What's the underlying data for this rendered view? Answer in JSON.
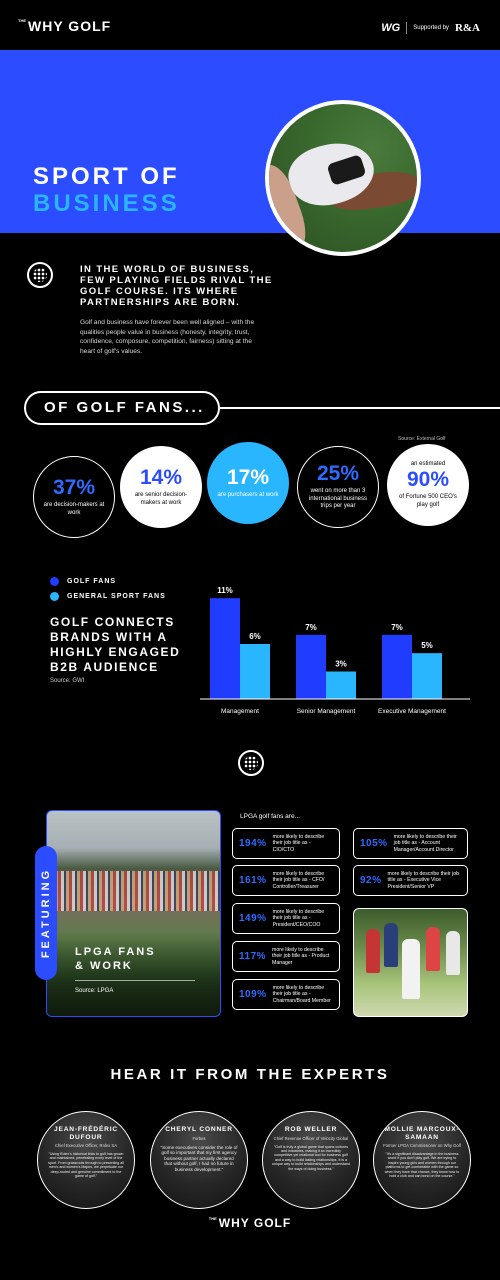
{
  "header": {
    "logo_the": "THE",
    "logo": "WHY GOLF",
    "brand_wg": "WG",
    "supported_by": "Supported by",
    "ra": "R&A"
  },
  "hero": {
    "title_line1": "SPORT OF",
    "title_line2": "BUSINESS"
  },
  "intro": {
    "bold": "IN THE WORLD OF BUSINESS, FEW PLAYING FIELDS RIVAL THE GOLF COURSE. ITS WHERE PARTNERSHIPS ARE BORN.",
    "body": "Golf and business have forever been well aligned – with the qualities people value in business (honesty, integrity, trust, confidence, composure, competition, fairness) sitting at the heart of golf's values."
  },
  "fans": {
    "pill": "OF GOLF FANS...",
    "source": "Source: External Golf",
    "stats": [
      {
        "value": "37%",
        "label": "are decision-makers at work"
      },
      {
        "value": "14%",
        "label": "are senior decision-makers at work"
      },
      {
        "value": "17%",
        "label": "are purchasers at work"
      },
      {
        "value": "25%",
        "label": "went on more than 3 international business trips per year"
      },
      {
        "pre": "an estimated",
        "value": "90%",
        "label": "of Fortune 500 CEO's play golf"
      }
    ]
  },
  "chart_section": {
    "legend_golf": "GOLF FANS",
    "legend_general": "GENERAL SPORT FANS",
    "title": "GOLF CONNECTS BRANDS WITH A HIGHLY ENGAGED B2B AUDIENCE",
    "source": "Source: GWI"
  },
  "chart_data": {
    "type": "bar",
    "categories": [
      "Management",
      "Senior Management",
      "Executive Management"
    ],
    "series": [
      {
        "name": "GOLF FANS",
        "values": [
          11,
          7,
          7
        ],
        "labels": [
          "11%",
          "7%",
          "7%"
        ],
        "color": "#1f3cff"
      },
      {
        "name": "GENERAL SPORT FANS",
        "values": [
          6,
          3,
          5
        ],
        "labels": [
          "6%",
          "3%",
          "5%"
        ],
        "color": "#29b6ff"
      }
    ],
    "ylim": [
      0,
      12
    ],
    "grid": false,
    "legend": "top-left"
  },
  "lpga": {
    "featuring": "FEATURING",
    "title_line1": "LPGA FANS",
    "title_line2": "& WORK",
    "source": "Source: LPGA",
    "intro": "LPGA golf fans are...",
    "left": [
      {
        "value": "194%",
        "text": "more likely to describe their job title as - CIO/CTO"
      },
      {
        "value": "161%",
        "text": "more likely to describe their job title as - CFO/ Controller/Treasurer"
      },
      {
        "value": "149%",
        "text": "more likely to describe their job title as - President/CEO/COO"
      },
      {
        "value": "117%",
        "text": "more likely to describe their job title as - Product Manager"
      },
      {
        "value": "109%",
        "text": "more likely to describe their job title as - Chairman/Board Member"
      }
    ],
    "right": [
      {
        "value": "105%",
        "text": "more likely to describe their job title as - Account Manager/Account Director"
      },
      {
        "value": "92%",
        "text": "more likely to describe their job title as - Executive Vice President/Senior VP"
      }
    ]
  },
  "experts": {
    "title": "HEAR IT FROM THE EXPERTS",
    "items": [
      {
        "name": "JEAN-FRÉDÉRIC DUFOUR",
        "role": "Chief Executive Officer, Rolex SA",
        "quote": "\"Using Rolex's historical links to golf has grown and maintained, penetrating every level of the sport. From grassroots through to presenting all men's and women's Majors, we perpetuate our deep-rooted and genuine commitment to the game of golf.\""
      },
      {
        "name": "CHERYL CONNER",
        "role": "Forbes",
        "quote": "\"Some executives consider the role of golf so important that my first agency business partner actually declared that without golf, I had no future in business development.\""
      },
      {
        "name": "ROB WELLER",
        "role": "Chief Revenue Officer of Velocity Global",
        "quote": "\"Golf is truly a global game that spans cultures and industries, making it an incredibly competitive yet relational tool for business golf and a way to build lasting relationships. It is a unique way to build relationships and understand the ways of doing business.\""
      },
      {
        "name": "MOLLIE MARCOUX-SAMAAN",
        "role": "Former LPGA Commissioner on Why Golf",
        "quote": "\"It's a significant disadvantage in the business world if you don't play golf. We are trying to inspire young girls and women through our platforms to get comfortable with the game so when they have that chance, they know how to hold a club and can bond on the course.\""
      }
    ]
  },
  "footer": {
    "logo_the": "THE",
    "logo": "WHY GOLF"
  }
}
